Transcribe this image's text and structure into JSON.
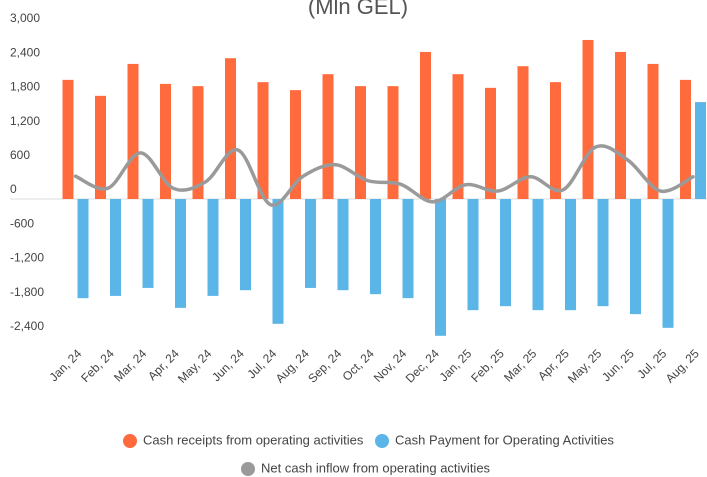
{
  "chart_data": {
    "type": "bar",
    "title": "(Mln GEL)",
    "categories": [
      "Jan, 24",
      "Feb, 24",
      "Mar, 24",
      "Apr, 24",
      "May, 24",
      "Jun, 24",
      "Jul, 24",
      "Aug, 24",
      "Sep, 24",
      "Oct, 24",
      "Nov, 24",
      "Dec, 24",
      "Jan, 25",
      "Feb, 25",
      "Mar, 25",
      "Apr, 25",
      "May, 25",
      "Jun, 25",
      "Jul, 25",
      "Aug, 25"
    ],
    "series": [
      {
        "name": "Cash receipts from operating activities",
        "color": "#ff6b3d",
        "type": "bar",
        "values": [
          2090,
          1810,
          2370,
          2020,
          1980,
          2470,
          2050,
          1910,
          2190,
          1980,
          1980,
          2580,
          2190,
          1950,
          2330,
          2050,
          2790,
          2580,
          2370,
          2090
        ]
      },
      {
        "name": "Cash Payment for Operating Activities",
        "color": "#5bb5e6",
        "type": "bar",
        "values": [
          -1740,
          -1700,
          -1560,
          -1910,
          -1700,
          -1600,
          -2190,
          -1560,
          -1600,
          -1670,
          -1740,
          -2400,
          -1950,
          -1880,
          -1950,
          -1950,
          -1880,
          -2020,
          -2260,
          1700
        ]
      },
      {
        "name": "Net cash inflow from operating activities",
        "color": "#9a9a9a",
        "type": "line",
        "values": [
          400,
          190,
          810,
          190,
          300,
          860,
          -100,
          400,
          600,
          320,
          260,
          -50,
          250,
          140,
          390,
          160,
          910,
          680,
          140,
          390
        ]
      }
    ],
    "ylim": [
      -2600,
      3000
    ],
    "yticks": [
      {
        "value": -2400,
        "label": "-2,400"
      },
      {
        "value": -1800,
        "label": "-1,800"
      },
      {
        "value": -1200,
        "label": "-1,200"
      },
      -600,
      0,
      600,
      {
        "value": 1200,
        "label": "1,200"
      },
      {
        "value": 1800,
        "label": "1,800"
      },
      {
        "value": 2400,
        "label": "2,400"
      },
      {
        "value": 3000,
        "label": "3,000"
      }
    ],
    "grid": false
  }
}
